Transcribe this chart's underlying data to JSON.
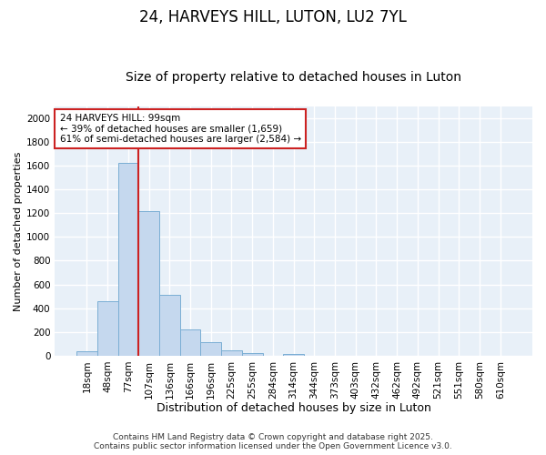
{
  "title": "24, HARVEYS HILL, LUTON, LU2 7YL",
  "subtitle": "Size of property relative to detached houses in Luton",
  "xlabel": "Distribution of detached houses by size in Luton",
  "ylabel": "Number of detached properties",
  "categories": [
    "18sqm",
    "48sqm",
    "77sqm",
    "107sqm",
    "136sqm",
    "166sqm",
    "196sqm",
    "225sqm",
    "255sqm",
    "284sqm",
    "314sqm",
    "344sqm",
    "373sqm",
    "403sqm",
    "432sqm",
    "462sqm",
    "492sqm",
    "521sqm",
    "551sqm",
    "580sqm",
    "610sqm"
  ],
  "values": [
    35,
    460,
    1620,
    1220,
    510,
    220,
    115,
    45,
    20,
    0,
    15,
    0,
    0,
    0,
    0,
    0,
    0,
    0,
    0,
    0,
    0
  ],
  "bar_color": "#c5d8ee",
  "bar_edge_color": "#7aaed4",
  "figure_color": "#ffffff",
  "background_color": "#e8f0f8",
  "grid_color": "#ffffff",
  "vline_color": "#cc2222",
  "vline_x_index": 2,
  "annotation_text": "24 HARVEYS HILL: 99sqm\n← 39% of detached houses are smaller (1,659)\n61% of semi-detached houses are larger (2,584) →",
  "annotation_box_color": "#cc2222",
  "ylim": [
    0,
    2100
  ],
  "yticks": [
    0,
    200,
    400,
    600,
    800,
    1000,
    1200,
    1400,
    1600,
    1800,
    2000
  ],
  "footer_text": "Contains HM Land Registry data © Crown copyright and database right 2025.\nContains public sector information licensed under the Open Government Licence v3.0.",
  "title_fontsize": 12,
  "subtitle_fontsize": 10,
  "xlabel_fontsize": 9,
  "ylabel_fontsize": 8,
  "tick_fontsize": 7.5,
  "footer_fontsize": 6.5
}
